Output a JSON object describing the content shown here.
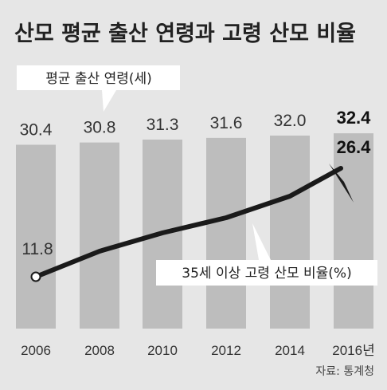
{
  "chart_data": {
    "type": "bar",
    "title": "산모 평균 출산 연령과 고령 산모 비율",
    "categories": [
      "2006",
      "2008",
      "2010",
      "2012",
      "2014",
      "2016년"
    ],
    "series": [
      {
        "name": "평균 출산 연령(세)",
        "type": "bar",
        "values": [
          30.4,
          30.8,
          31.3,
          31.6,
          32.0,
          32.4
        ],
        "value_labels": [
          "30.4",
          "30.8",
          "31.3",
          "31.6",
          "32.0",
          "32.4"
        ]
      },
      {
        "name": "35세 이상 고령 산모 비율(%)",
        "type": "line",
        "values": [
          11.8,
          null,
          null,
          null,
          null,
          26.4
        ],
        "labeled_points": [
          {
            "index": 0,
            "label": "11.8"
          },
          {
            "index": 5,
            "label": "26.4"
          }
        ]
      }
    ],
    "source": "자료: 통계청"
  },
  "colors": {
    "background": "#e6e6e6",
    "bar": "#bdbdbd",
    "line": "#1a1a1a",
    "text": "#222222"
  }
}
